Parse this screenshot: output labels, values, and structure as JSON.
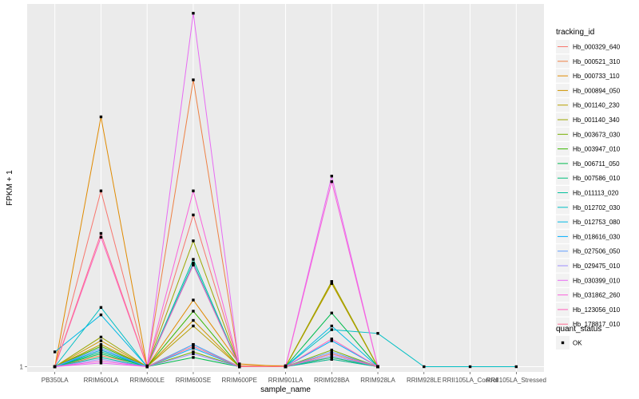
{
  "chart_data": {
    "type": "line",
    "xlabel": "sample_name",
    "ylabel": "FPKM + 1",
    "categories": [
      "PB350LA",
      "RRIM600LA",
      "RRIM600LE",
      "RRIM600SE",
      "RRIM600PE",
      "RRIM901LA",
      "RRIM928BA",
      "RRIM928LA",
      "RRIM928LE",
      "RRII105LA_Control",
      "RRII105LA_Stressed"
    ],
    "y_ticks": [
      {
        "value": 1,
        "label": "1"
      }
    ],
    "ylim": [
      0.72,
      20.6
    ],
    "grid": true,
    "legend_position": "right",
    "legend_title": "tracking_id",
    "series": [
      {
        "name": "Hb_000329_640",
        "color": "#F8766D",
        "values": [
          1,
          10.5,
          1,
          9.2,
          1,
          1,
          1.4,
          1,
          null,
          null,
          null
        ]
      },
      {
        "name": "Hb_000521_310",
        "color": "#EE8043",
        "values": [
          1,
          1.6,
          1.05,
          16.5,
          1.05,
          1.05,
          1.5,
          1,
          null,
          null,
          null
        ]
      },
      {
        "name": "Hb_000733_110",
        "color": "#E08A00",
        "values": [
          1,
          14.5,
          1,
          4.6,
          1.15,
          1,
          5.5,
          1,
          null,
          null,
          null
        ]
      },
      {
        "name": "Hb_000894_050",
        "color": "#CE9500",
        "values": [
          1,
          2.4,
          1,
          3.5,
          1,
          1,
          5.6,
          1,
          null,
          null,
          null
        ]
      },
      {
        "name": "Hb_001140_230",
        "color": "#B79F00",
        "values": [
          1,
          2.2,
          1,
          3.2,
          1,
          1,
          5.5,
          1,
          null,
          null,
          null
        ]
      },
      {
        "name": "Hb_001140_340",
        "color": "#9CA700",
        "values": [
          1,
          2.6,
          1,
          7.8,
          1,
          1,
          5.6,
          1,
          null,
          null,
          null
        ]
      },
      {
        "name": "Hb_003673_030",
        "color": "#76AF00",
        "values": [
          1,
          1.9,
          1,
          1.8,
          1,
          1,
          1.9,
          1,
          null,
          null,
          null
        ]
      },
      {
        "name": "Hb_003947_010",
        "color": "#39B600",
        "values": [
          1,
          2.1,
          1,
          4.0,
          1,
          1,
          1.7,
          1,
          null,
          null,
          null
        ]
      },
      {
        "name": "Hb_006711_050",
        "color": "#00BB4E",
        "values": [
          1,
          1.7,
          1,
          1.5,
          1,
          1,
          3.9,
          1,
          null,
          null,
          null
        ]
      },
      {
        "name": "Hb_007586_010",
        "color": "#00BE79",
        "values": [
          1,
          1.8,
          1,
          2.2,
          1,
          1,
          1.5,
          1,
          null,
          null,
          null
        ]
      },
      {
        "name": "Hb_011113_020",
        "color": "#00C09D",
        "values": [
          1,
          1.5,
          1,
          6.8,
          1,
          1,
          1.4,
          1,
          null,
          null,
          null
        ]
      },
      {
        "name": "Hb_012702_030",
        "color": "#00BFC4",
        "values": [
          1,
          4.2,
          1,
          6.6,
          1,
          1,
          3.0,
          2.8,
          1,
          1,
          1
        ]
      },
      {
        "name": "Hb_012753_080",
        "color": "#00B8E5",
        "values": [
          1.8,
          3.8,
          1,
          6.5,
          1,
          1,
          3.2,
          1,
          null,
          null,
          null
        ]
      },
      {
        "name": "Hb_018616_030",
        "color": "#00ACFC",
        "values": [
          1,
          1.9,
          1,
          2.0,
          1,
          1,
          2.4,
          1,
          null,
          null,
          null
        ]
      },
      {
        "name": "Hb_027506_050",
        "color": "#619CFF",
        "values": [
          1,
          2.0,
          1,
          2.2,
          1,
          1,
          1.8,
          1,
          null,
          null,
          null
        ]
      },
      {
        "name": "Hb_029475_010",
        "color": "#9C8DFF",
        "values": [
          1,
          1.4,
          1,
          1.7,
          1,
          1,
          1.6,
          1,
          null,
          null,
          null
        ]
      },
      {
        "name": "Hb_030399_010",
        "color": "#E76BF3",
        "values": [
          1,
          1.2,
          1,
          20.1,
          1,
          1,
          11.3,
          1,
          null,
          null,
          null
        ]
      },
      {
        "name": "Hb_031862_260",
        "color": "#FA62DB",
        "values": [
          1,
          1.3,
          1,
          10.5,
          1,
          1,
          11.0,
          1,
          null,
          null,
          null
        ]
      },
      {
        "name": "Hb_123056_010",
        "color": "#FF62BC",
        "values": [
          1,
          8.0,
          1,
          6.5,
          1,
          1,
          2.5,
          1,
          null,
          null,
          null
        ]
      },
      {
        "name": "Hb_178817_010",
        "color": "#FF6C91",
        "values": [
          1,
          8.2,
          1,
          2.1,
          1,
          1,
          1.7,
          1,
          null,
          null,
          null
        ]
      }
    ],
    "legend2": {
      "title": "quant_status",
      "items": [
        {
          "label": "OK"
        }
      ]
    }
  }
}
